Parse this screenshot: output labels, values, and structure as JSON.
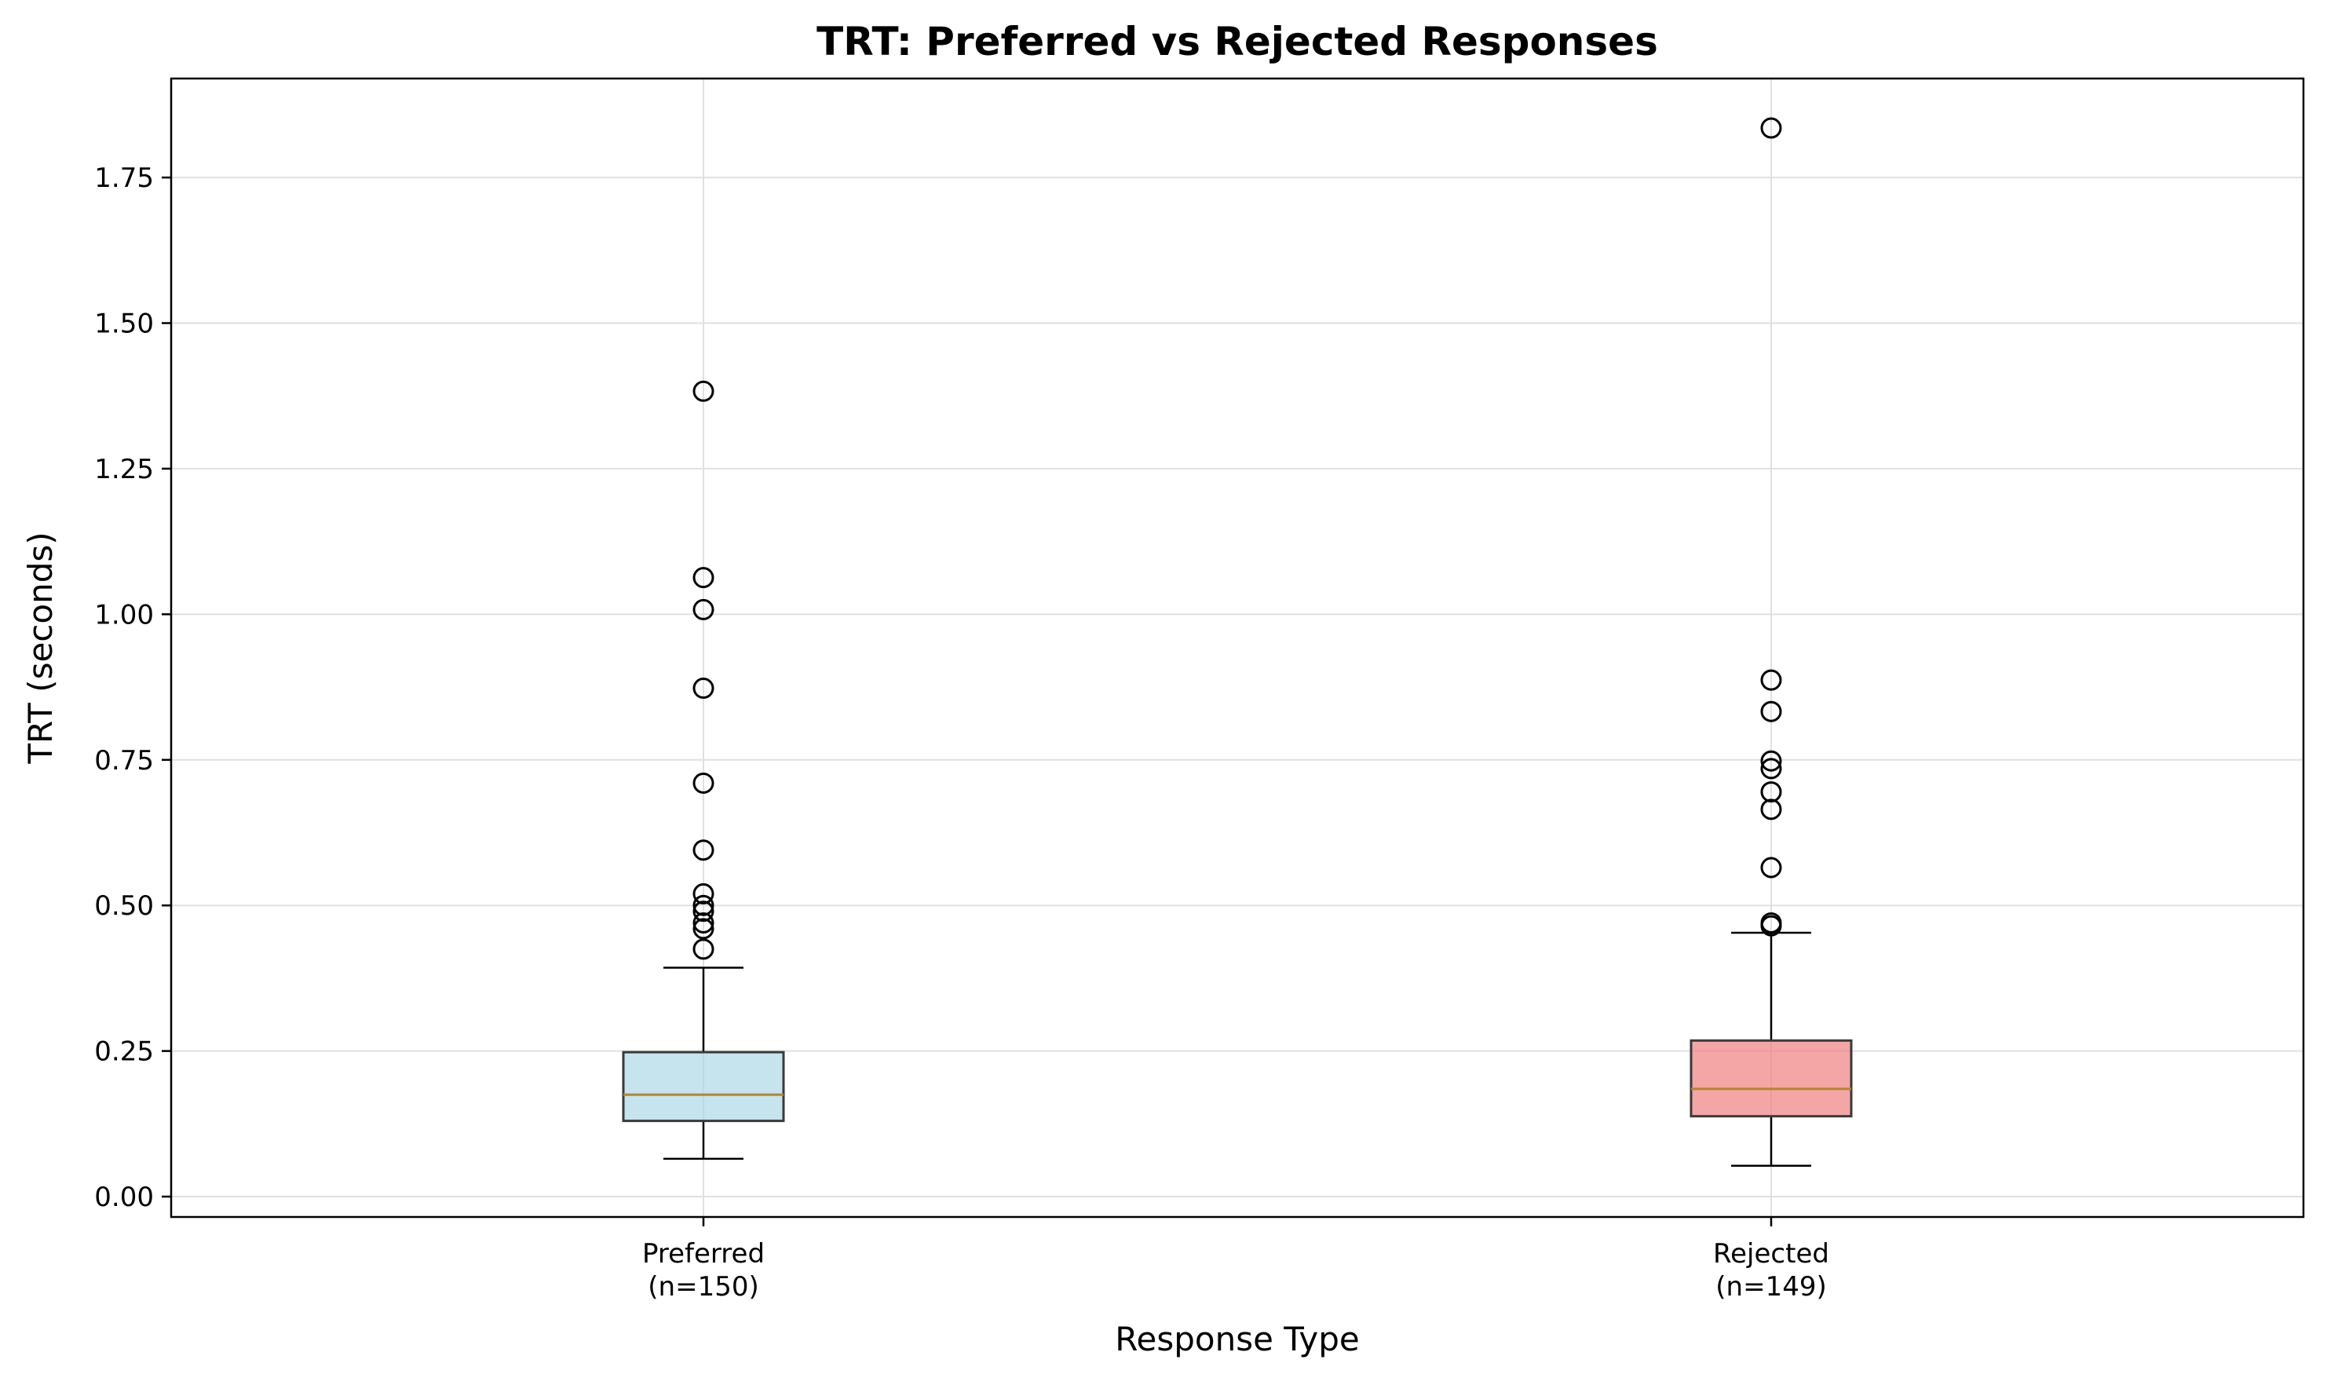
{
  "chart_data": {
    "type": "box",
    "title": "TRT: Preferred vs Rejected Responses",
    "xlabel": "Response Type",
    "ylabel": "TRT (seconds)",
    "ylim": [
      -0.035,
      1.92
    ],
    "yticks": [
      0.0,
      0.25,
      0.5,
      0.75,
      1.0,
      1.25,
      1.5,
      1.75
    ],
    "ytick_labels": [
      "0.00",
      "0.25",
      "0.50",
      "0.75",
      "1.00",
      "1.25",
      "1.50",
      "1.75"
    ],
    "grid": true,
    "categories": [
      {
        "label_line1": "Preferred",
        "label_line2": "(n=150)",
        "fill": "#add8e6",
        "q1": 0.13,
        "median": 0.175,
        "q3": 0.248,
        "whisker_low": 0.065,
        "whisker_high": 0.393,
        "outliers": [
          0.425,
          0.46,
          0.47,
          0.49,
          0.5,
          0.52,
          0.595,
          0.71,
          0.873,
          1.008,
          1.063,
          1.383
        ]
      },
      {
        "label_line1": "Rejected",
        "label_line2": "(n=149)",
        "fill": "#f08080",
        "q1": 0.138,
        "median": 0.185,
        "q3": 0.268,
        "whisker_low": 0.053,
        "whisker_high": 0.453,
        "outliers": [
          0.465,
          0.47,
          0.565,
          0.665,
          0.695,
          0.735,
          0.748,
          0.833,
          0.887,
          1.835
        ]
      }
    ],
    "colors": {
      "median": "#b5862b",
      "box_edge": "#3a3a3a",
      "grid": "#e0e0e0",
      "axis": "#000000"
    }
  }
}
